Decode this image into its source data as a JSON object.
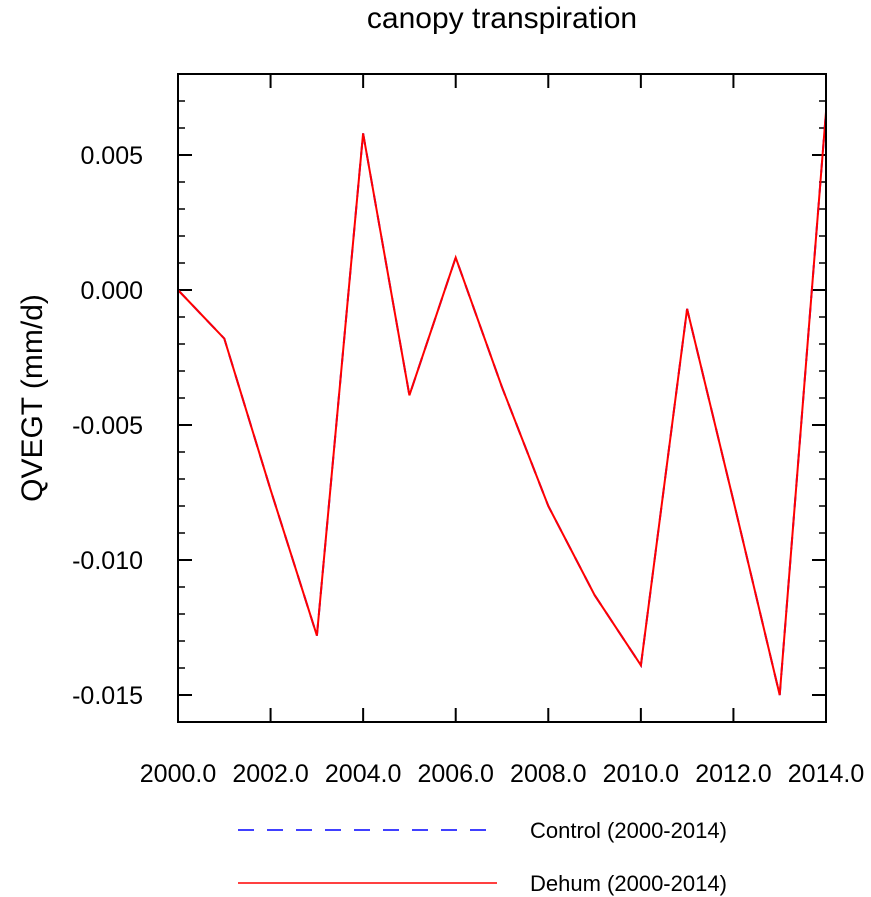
{
  "chart_data": {
    "type": "line",
    "title": "canopy transpiration",
    "xlabel": "",
    "ylabel": "QVEGT  (mm/d)",
    "xlim": [
      2000,
      2014
    ],
    "ylim": [
      -0.016,
      0.008
    ],
    "x": [
      2000,
      2001,
      2002,
      2003,
      2004,
      2005,
      2006,
      2007,
      2008,
      2009,
      2010,
      2011,
      2012,
      2013,
      2014
    ],
    "x_tick_values": [
      2000,
      2002,
      2004,
      2006,
      2008,
      2010,
      2012,
      2014
    ],
    "x_tick_labels": [
      "2000.0",
      "2002.0",
      "2004.0",
      "2006.0",
      "2008.0",
      "2010.0",
      "2012.0",
      "2014.0"
    ],
    "y_tick_values": [
      0.005,
      0.0,
      -0.005,
      -0.01,
      -0.015
    ],
    "y_tick_labels": [
      "0.005",
      "0.000",
      "-0.005",
      "-0.010",
      "-0.015"
    ],
    "grid": false,
    "legend_position": "bottom",
    "series": [
      {
        "name": "Control (2000-2014)",
        "color": "#0000ff",
        "style": "dashed",
        "values": [
          0.0,
          -0.0018,
          -0.0074,
          -0.0128,
          0.0058,
          -0.0039,
          0.0012,
          -0.0036,
          -0.008,
          -0.0113,
          -0.0139,
          -0.0007,
          -0.0078,
          -0.015,
          0.0066
        ]
      },
      {
        "name": "Dehum (2000-2014)",
        "color": "#ff0000",
        "style": "solid",
        "values": [
          0.0,
          -0.0018,
          -0.0074,
          -0.0128,
          0.0058,
          -0.0039,
          0.0012,
          -0.0036,
          -0.008,
          -0.0113,
          -0.0139,
          -0.0007,
          -0.0078,
          -0.015,
          0.0066
        ]
      }
    ]
  }
}
